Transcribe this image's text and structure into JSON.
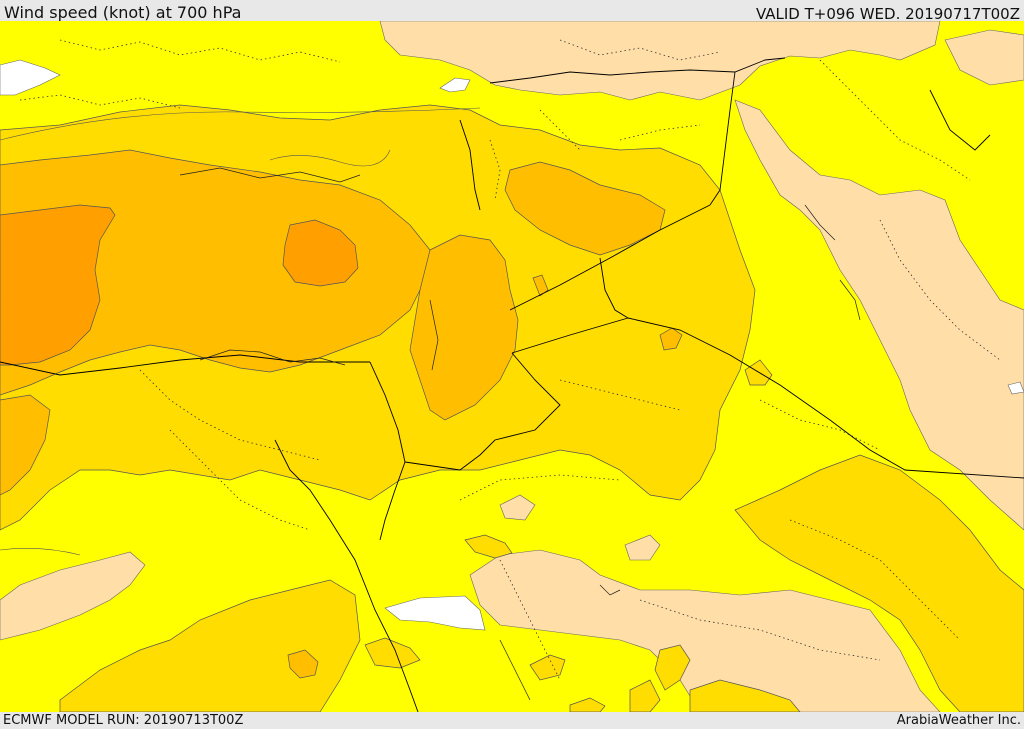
{
  "header": {
    "title": "Wind speed (knot) at 700 hPa",
    "valid": "VALID T+096 WED. 20190717T00Z"
  },
  "footer": {
    "model_run": "ECMWF MODEL RUN: 20190713T00Z",
    "credit": "ArabiaWeather Inc."
  },
  "map": {
    "variable": "wind-speed-700hPa",
    "palette": {
      "white": "#ffffff",
      "tan": "#ffdea8",
      "yellow": "#ffff00",
      "gold": "#ffdd00",
      "light-orange": "#ffbf00",
      "orange": "#ff9f00",
      "contour": "#555555",
      "border": "#000000"
    }
  }
}
